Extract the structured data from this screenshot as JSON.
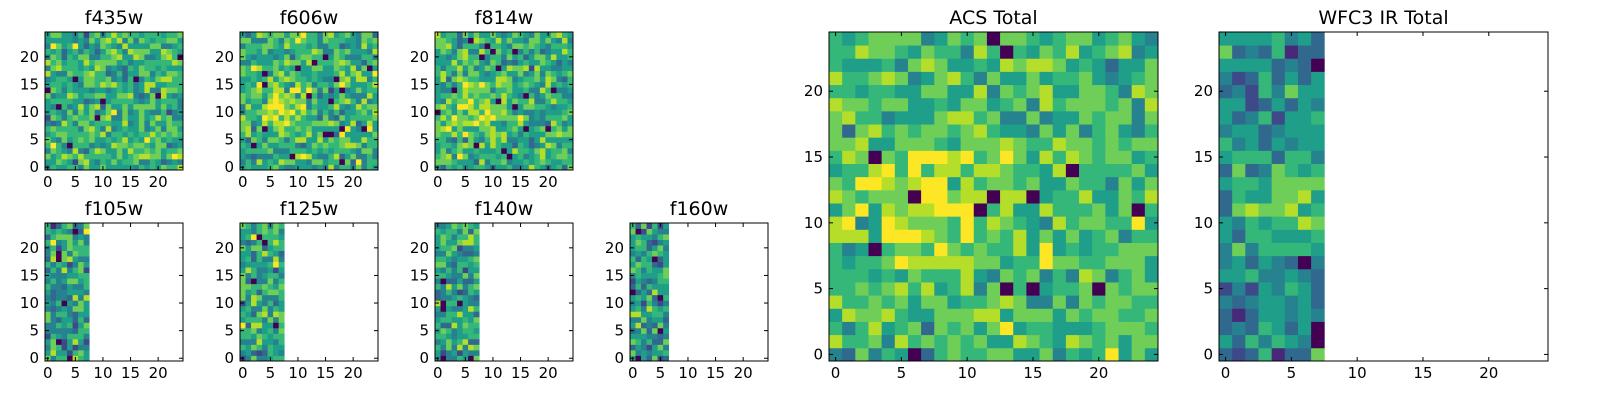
{
  "colormap": "viridis",
  "palette": [
    "#440154",
    "#482878",
    "#3e4989",
    "#31688e",
    "#26828e",
    "#1f9e89",
    "#35b779",
    "#6ece58",
    "#b5de2b",
    "#fde725"
  ],
  "chart_data": [
    {
      "id": "f435w",
      "type": "heatmap",
      "title": "f435w",
      "grid_size": 25,
      "filled_columns": 25,
      "mean_level": 0.62,
      "spread": 0.22,
      "seed": 11,
      "xlim": [
        -0.5,
        24.5
      ],
      "ylim": [
        -0.5,
        24.5
      ],
      "xticks": [
        "0",
        "5",
        "10",
        "15",
        "20"
      ],
      "yticks": [
        "0",
        "5",
        "10",
        "15",
        "20"
      ]
    },
    {
      "id": "f606w",
      "type": "heatmap",
      "title": "f606w",
      "grid_size": 25,
      "filled_columns": 25,
      "mean_level": 0.62,
      "spread": 0.22,
      "seed": 23,
      "blob": {
        "x": 7,
        "y": 11,
        "sigma": 3,
        "amplitude": 0.25
      },
      "xlim": [
        -0.5,
        24.5
      ],
      "ylim": [
        -0.5,
        24.5
      ],
      "xticks": [
        "0",
        "5",
        "10",
        "15",
        "20"
      ],
      "yticks": [
        "0",
        "5",
        "10",
        "15",
        "20"
      ]
    },
    {
      "id": "f814w",
      "type": "heatmap",
      "title": "f814w",
      "grid_size": 25,
      "filled_columns": 25,
      "mean_level": 0.62,
      "spread": 0.22,
      "seed": 37,
      "blob": {
        "x": 7,
        "y": 11,
        "sigma": 3,
        "amplitude": 0.25
      },
      "xlim": [
        -0.5,
        24.5
      ],
      "ylim": [
        -0.5,
        24.5
      ],
      "xticks": [
        "0",
        "5",
        "10",
        "15",
        "20"
      ],
      "yticks": [
        "0",
        "5",
        "10",
        "15",
        "20"
      ]
    },
    {
      "id": "f105w",
      "type": "heatmap",
      "title": "f105w",
      "grid_size": 25,
      "filled_columns": 8,
      "mean_level": 0.55,
      "spread": 0.25,
      "seed": 41,
      "xlim": [
        -0.5,
        24.5
      ],
      "ylim": [
        -0.5,
        24.5
      ],
      "xticks": [
        "0",
        "5",
        "10",
        "15",
        "20"
      ],
      "yticks": [
        "0",
        "5",
        "10",
        "15",
        "20"
      ]
    },
    {
      "id": "f125w",
      "type": "heatmap",
      "title": "f125w",
      "grid_size": 25,
      "filled_columns": 8,
      "mean_level": 0.6,
      "spread": 0.25,
      "seed": 53,
      "xlim": [
        -0.5,
        24.5
      ],
      "ylim": [
        -0.5,
        24.5
      ],
      "xticks": [
        "0",
        "5",
        "10",
        "15",
        "20"
      ],
      "yticks": [
        "0",
        "5",
        "10",
        "15",
        "20"
      ]
    },
    {
      "id": "f140w",
      "type": "heatmap",
      "title": "f140w",
      "grid_size": 25,
      "filled_columns": 8,
      "mean_level": 0.58,
      "spread": 0.25,
      "seed": 67,
      "xlim": [
        -0.5,
        24.5
      ],
      "ylim": [
        -0.5,
        24.5
      ],
      "xticks": [
        "0",
        "5",
        "10",
        "15",
        "20"
      ],
      "yticks": [
        "0",
        "5",
        "10",
        "15",
        "20"
      ]
    },
    {
      "id": "f160w",
      "type": "heatmap",
      "title": "f160w",
      "grid_size": 25,
      "filled_columns": 7,
      "mean_level": 0.55,
      "spread": 0.25,
      "seed": 79,
      "xlim": [
        -0.5,
        24.5
      ],
      "ylim": [
        -0.5,
        24.5
      ],
      "xticks": [
        "0",
        "5",
        "10",
        "15",
        "20"
      ],
      "yticks": [
        "0",
        "5",
        "10",
        "15",
        "20"
      ]
    },
    {
      "id": "acs_total",
      "type": "heatmap",
      "title": "ACS Total",
      "grid_size": 25,
      "filled_columns": 25,
      "mean_level": 0.65,
      "spread": 0.2,
      "seed": 97,
      "blob": {
        "x": 7,
        "y": 12,
        "sigma": 4,
        "amplitude": 0.2
      },
      "xlim": [
        -0.5,
        24.5
      ],
      "ylim": [
        -0.5,
        24.5
      ],
      "xticks": [
        "0",
        "5",
        "10",
        "15",
        "20"
      ],
      "yticks": [
        "0",
        "5",
        "10",
        "15",
        "20"
      ]
    },
    {
      "id": "wfc3_ir_total",
      "type": "heatmap",
      "title": "WFC3 IR Total",
      "grid_size": 25,
      "filled_columns": 8,
      "mean_level": 0.45,
      "spread": 0.2,
      "seed": 113,
      "blob": {
        "x": 5,
        "y": 12,
        "sigma": 3,
        "amplitude": 0.3
      },
      "xlim": [
        -0.5,
        24.5
      ],
      "ylim": [
        -0.5,
        24.5
      ],
      "xticks": [
        "0",
        "5",
        "10",
        "15",
        "20"
      ],
      "yticks": [
        "0",
        "5",
        "10",
        "15",
        "20"
      ]
    }
  ]
}
